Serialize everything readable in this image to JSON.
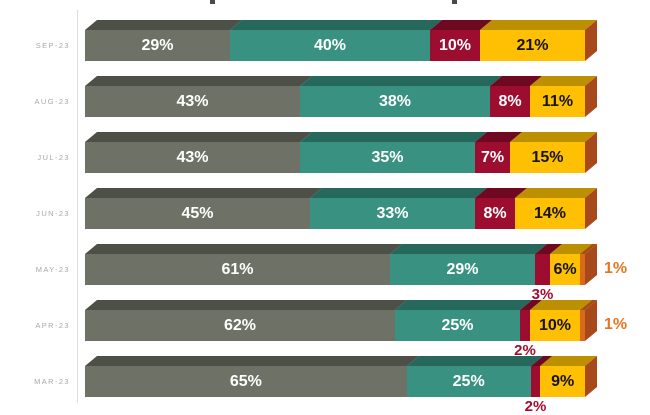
{
  "chart_data": {
    "type": "bar",
    "orientation": "horizontal",
    "stacked": true,
    "unit": "%",
    "title": "",
    "xlabel": "",
    "ylabel": "",
    "legend": "none",
    "grid": "off",
    "axis": {
      "category_axis_side": "left",
      "axis_line": true
    },
    "categories": [
      "SEP-23",
      "AUG-23",
      "JUL-23",
      "JUN-23",
      "MAY-23",
      "APR-23",
      "MAR-23"
    ],
    "series": [
      {
        "name": "series-1-gray",
        "color": "#6E7266",
        "values": [
          29,
          43,
          43,
          45,
          61,
          62,
          65
        ]
      },
      {
        "name": "series-2-teal",
        "color": "#389181",
        "values": [
          40,
          38,
          35,
          33,
          29,
          25,
          25
        ]
      },
      {
        "name": "series-3-red",
        "color": "#9D0D2F",
        "values": [
          10,
          8,
          7,
          8,
          3,
          2,
          2
        ]
      },
      {
        "name": "series-4-yellow",
        "color": "#FFC003",
        "values": [
          21,
          11,
          15,
          14,
          6,
          10,
          9
        ]
      },
      {
        "name": "series-5-orange",
        "color": "#E87722",
        "values": [
          0,
          0,
          0,
          0,
          1,
          1,
          0
        ]
      }
    ],
    "rows": [
      {
        "category": "SEP-23",
        "segments": [
          {
            "key": "gray",
            "value": 29,
            "label": "29%"
          },
          {
            "key": "teal",
            "value": 40,
            "label": "40%"
          },
          {
            "key": "red",
            "value": 10,
            "label": "10%"
          },
          {
            "key": "yellow",
            "value": 21,
            "label": "21%"
          }
        ]
      },
      {
        "category": "AUG-23",
        "segments": [
          {
            "key": "gray",
            "value": 43,
            "label": "43%"
          },
          {
            "key": "teal",
            "value": 38,
            "label": "38%"
          },
          {
            "key": "red",
            "value": 8,
            "label": "8%"
          },
          {
            "key": "yellow",
            "value": 11,
            "label": "11%"
          }
        ]
      },
      {
        "category": "JUL-23",
        "segments": [
          {
            "key": "gray",
            "value": 43,
            "label": "43%"
          },
          {
            "key": "teal",
            "value": 35,
            "label": "35%"
          },
          {
            "key": "red",
            "value": 7,
            "label": "7%"
          },
          {
            "key": "yellow",
            "value": 15,
            "label": "15%"
          }
        ]
      },
      {
        "category": "JUN-23",
        "segments": [
          {
            "key": "gray",
            "value": 45,
            "label": "45%"
          },
          {
            "key": "teal",
            "value": 33,
            "label": "33%"
          },
          {
            "key": "red",
            "value": 8,
            "label": "8%"
          },
          {
            "key": "yellow",
            "value": 14,
            "label": "14%"
          }
        ]
      },
      {
        "category": "MAY-23",
        "segments": [
          {
            "key": "gray",
            "value": 61,
            "label": "61%"
          },
          {
            "key": "teal",
            "value": 29,
            "label": "29%"
          },
          {
            "key": "red",
            "value": 3,
            "label": "3%",
            "placement": "below"
          },
          {
            "key": "yellow",
            "value": 6,
            "label": "6%"
          },
          {
            "key": "orange",
            "value": 1,
            "label": "1%",
            "placement": "right"
          }
        ]
      },
      {
        "category": "APR-23",
        "segments": [
          {
            "key": "gray",
            "value": 62,
            "label": "62%"
          },
          {
            "key": "teal",
            "value": 25,
            "label": "25%"
          },
          {
            "key": "red",
            "value": 2,
            "label": "2%",
            "placement": "below"
          },
          {
            "key": "yellow",
            "value": 10,
            "label": "10%"
          },
          {
            "key": "orange",
            "value": 1,
            "label": "1%",
            "placement": "right"
          }
        ]
      },
      {
        "category": "MAR-23",
        "segments": [
          {
            "key": "gray",
            "value": 65,
            "label": "65%"
          },
          {
            "key": "teal",
            "value": 25,
            "label": "25%"
          },
          {
            "key": "red",
            "value": 2,
            "label": "2%",
            "placement": "below"
          },
          {
            "key": "yellow",
            "value": 9,
            "label": "9%"
          }
        ]
      }
    ],
    "colors": {
      "gray": {
        "front": "#6E7266",
        "top": "#4C5046"
      },
      "teal": {
        "front": "#389181",
        "top": "#27685C"
      },
      "red": {
        "front": "#9D0D2F",
        "top": "#6E0921"
      },
      "yellow": {
        "front": "#FFC003",
        "top": "#BD9002"
      },
      "orange": {
        "front": "#D96A1A",
        "top": "#A4500F"
      },
      "side_cap": "#A8491C",
      "axis_line": "#DCDCDC",
      "category_label": "#A6A9A4",
      "label_on_dark": "#FFFFFF",
      "label_on_yellow": "#141414",
      "below_label": "#A50D2F",
      "right_label": "#E87722"
    }
  }
}
